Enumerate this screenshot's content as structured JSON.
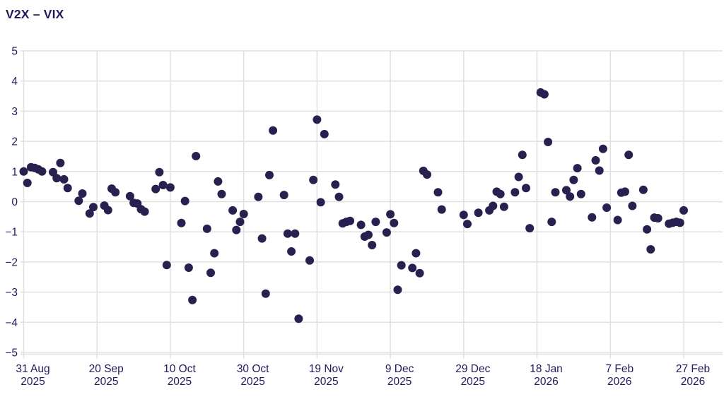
{
  "title": "V2X – VIX",
  "chart_data": {
    "type": "scatter",
    "title": "V2X – VIX",
    "series_name": "V2X minus VIX spread",
    "legend": "none",
    "grid": true,
    "colors": {
      "dot": "#272150",
      "text": "#211a5e",
      "grid": "#e0e0e0"
    },
    "y_axis": {
      "min": -5,
      "max": 5,
      "ticks": [
        {
          "value": 5,
          "label": "5"
        },
        {
          "value": 4,
          "label": "4"
        },
        {
          "value": 3,
          "label": "3"
        },
        {
          "value": 2,
          "label": "2"
        },
        {
          "value": 1,
          "label": "1"
        },
        {
          "value": 0,
          "label": "0"
        },
        {
          "value": -1,
          "label": "−1"
        },
        {
          "value": -2,
          "label": "−2"
        },
        {
          "value": -3,
          "label": "−3"
        },
        {
          "value": -4,
          "label": "−4"
        },
        {
          "value": -5,
          "label": "−5"
        }
      ]
    },
    "x_axis": {
      "start": "2025-08-31",
      "ticks": [
        {
          "date": "2025-08-31",
          "line1": "31 Aug",
          "line2": "2025"
        },
        {
          "date": "2025-09-20",
          "line1": "20 Sep",
          "line2": "2025"
        },
        {
          "date": "2025-10-10",
          "line1": "10 Oct",
          "line2": "2025"
        },
        {
          "date": "2025-10-30",
          "line1": "30 Oct",
          "line2": "2025"
        },
        {
          "date": "2025-11-19",
          "line1": "19 Nov",
          "line2": "2025"
        },
        {
          "date": "2025-12-09",
          "line1": "9 Dec",
          "line2": "2025"
        },
        {
          "date": "2025-12-29",
          "line1": "29 Dec",
          "line2": "2025"
        },
        {
          "date": "2026-01-18",
          "line1": "18 Jan",
          "line2": "2026"
        },
        {
          "date": "2026-02-07",
          "line1": "7 Feb",
          "line2": "2026"
        },
        {
          "date": "2026-02-27",
          "line1": "27 Feb",
          "line2": "2026"
        }
      ]
    },
    "points": {
      "dates": [
        "2025-08-31",
        "2025-09-01",
        "2025-09-02",
        "2025-09-03",
        "2025-09-04",
        "2025-09-05",
        "2025-09-08",
        "2025-09-09",
        "2025-09-10",
        "2025-09-11",
        "2025-09-12",
        "2025-09-15",
        "2025-09-16",
        "2025-09-18",
        "2025-09-19",
        "2025-09-22",
        "2025-09-23",
        "2025-09-24",
        "2025-09-25",
        "2025-09-29",
        "2025-09-30",
        "2025-10-01",
        "2025-10-02",
        "2025-10-03",
        "2025-10-06",
        "2025-10-07",
        "2025-10-08",
        "2025-10-09",
        "2025-10-10",
        "2025-10-13",
        "2025-10-14",
        "2025-10-15",
        "2025-10-16",
        "2025-10-17",
        "2025-10-20",
        "2025-10-21",
        "2025-10-22",
        "2025-10-23",
        "2025-10-24",
        "2025-10-27",
        "2025-10-28",
        "2025-10-29",
        "2025-10-30",
        "2025-11-03",
        "2025-11-04",
        "2025-11-05",
        "2025-11-06",
        "2025-11-07",
        "2025-11-10",
        "2025-11-11",
        "2025-11-12",
        "2025-11-13",
        "2025-11-14",
        "2025-11-17",
        "2025-11-18",
        "2025-11-19",
        "2025-11-20",
        "2025-11-21",
        "2025-11-24",
        "2025-11-25",
        "2025-11-26",
        "2025-11-27",
        "2025-11-28",
        "2025-12-01",
        "2025-12-02",
        "2025-12-03",
        "2025-12-04",
        "2025-12-05",
        "2025-12-08",
        "2025-12-09",
        "2025-12-10",
        "2025-12-11",
        "2025-12-12",
        "2025-12-15",
        "2025-12-16",
        "2025-12-17",
        "2025-12-18",
        "2025-12-19",
        "2025-12-22",
        "2025-12-23",
        "2025-12-29",
        "2025-12-30",
        "2026-01-02",
        "2026-01-05",
        "2026-01-06",
        "2026-01-07",
        "2026-01-08",
        "2026-01-09",
        "2026-01-12",
        "2026-01-13",
        "2026-01-14",
        "2026-01-15",
        "2026-01-16",
        "2026-01-19",
        "2026-01-20",
        "2026-01-21",
        "2026-01-22",
        "2026-01-23",
        "2026-01-26",
        "2026-01-27",
        "2026-01-28",
        "2026-01-29",
        "2026-01-30",
        "2026-02-02",
        "2026-02-03",
        "2026-02-04",
        "2026-02-05",
        "2026-02-06",
        "2026-02-09",
        "2026-02-10",
        "2026-02-11",
        "2026-02-12",
        "2026-02-13",
        "2026-02-16",
        "2026-02-17",
        "2026-02-18",
        "2026-02-19",
        "2026-02-20",
        "2026-02-23",
        "2026-02-24",
        "2026-02-25",
        "2026-02-26",
        "2026-02-27"
      ],
      "values": [
        1.0,
        0.62,
        1.14,
        1.12,
        1.07,
        1.0,
        0.98,
        0.78,
        1.28,
        0.74,
        0.45,
        0.03,
        0.27,
        -0.39,
        -0.18,
        -0.13,
        -0.28,
        0.43,
        0.31,
        0.18,
        -0.04,
        -0.06,
        -0.25,
        -0.33,
        0.42,
        0.98,
        0.55,
        -2.1,
        0.47,
        -0.71,
        0.02,
        -2.19,
        -3.26,
        1.51,
        -0.9,
        -2.36,
        -1.71,
        0.67,
        0.25,
        -0.29,
        -0.94,
        -0.67,
        -0.41,
        0.16,
        -1.22,
        -3.05,
        0.88,
        2.36,
        0.22,
        -1.06,
        -1.65,
        -1.06,
        -3.88,
        -1.95,
        0.72,
        2.72,
        -0.02,
        2.24,
        0.57,
        0.16,
        -0.72,
        -0.67,
        -0.64,
        -0.77,
        -1.16,
        -1.1,
        -1.44,
        -0.67,
        -1.02,
        -0.42,
        -0.71,
        -2.92,
        -2.11,
        -2.2,
        -1.71,
        -2.37,
        1.02,
        0.9,
        0.31,
        -0.26,
        -0.44,
        -0.74,
        -0.37,
        -0.29,
        -0.14,
        0.33,
        0.25,
        -0.17,
        0.31,
        0.82,
        1.55,
        0.45,
        -0.88,
        3.62,
        3.56,
        1.98,
        -0.67,
        0.31,
        0.38,
        0.17,
        0.72,
        1.11,
        0.25,
        -0.52,
        1.37,
        1.03,
        1.75,
        -0.2,
        -0.61,
        0.3,
        0.33,
        1.55,
        -0.14,
        0.39,
        -0.92,
        -1.58,
        -0.53,
        -0.55,
        -0.73,
        -0.7,
        -0.67,
        -0.7,
        -0.29
      ]
    }
  }
}
